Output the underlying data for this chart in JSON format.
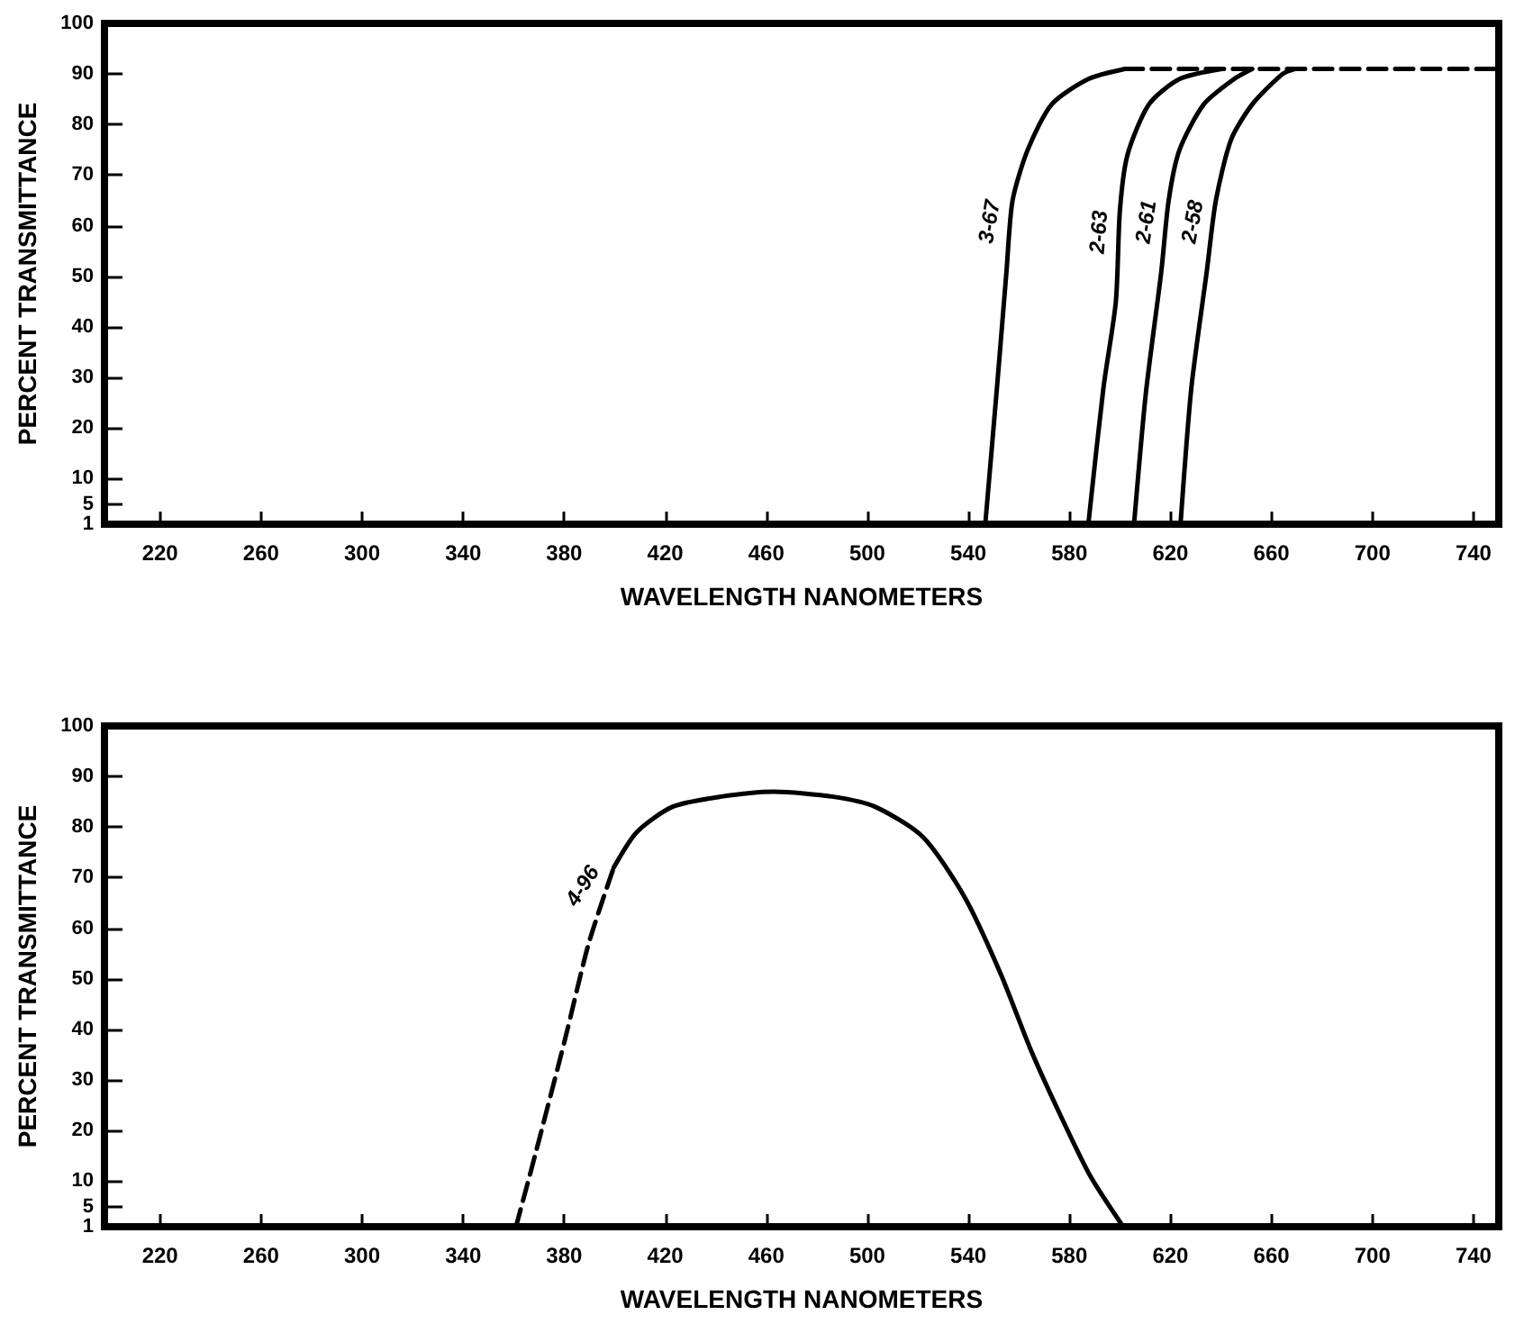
{
  "chart_data": [
    {
      "type": "line",
      "xlabel": "WAVELENGTH NANOMETERS",
      "ylabel": "PERCENT TRANSMITTANCE",
      "xlim": [
        198,
        750
      ],
      "ylim": [
        1,
        100
      ],
      "xticks": [
        220,
        260,
        300,
        340,
        380,
        420,
        460,
        500,
        540,
        580,
        620,
        660,
        700,
        740
      ],
      "yticks": [
        1,
        5,
        10,
        20,
        30,
        40,
        50,
        60,
        70,
        80,
        90,
        100
      ],
      "grid": false,
      "marker": "none",
      "series": [
        {
          "name": "3-67",
          "color": "#000000",
          "line_style": "solid",
          "x": [
            546.7,
            551.5,
            555.1,
            557.5,
            563.5,
            573,
            587.5,
            602
          ],
          "values": [
            1,
            29,
            51,
            65,
            75,
            84,
            89,
            91
          ]
        },
        {
          "name": "2-63",
          "color": "#000000",
          "line_style": "solid",
          "x": [
            587.5,
            593.5,
            598.4,
            600,
            603,
            611.5,
            623.6,
            640.4
          ],
          "values": [
            1,
            28,
            45,
            63,
            74,
            84,
            89,
            91
          ]
        },
        {
          "name": "2-61",
          "color": "#000000",
          "line_style": "solid",
          "x": [
            605.6,
            610.3,
            616.4,
            619.3,
            623.6,
            633.2,
            645.2,
            652.4
          ],
          "values": [
            1,
            27,
            51,
            65,
            75,
            84,
            89,
            91
          ]
        },
        {
          "name": "2-58",
          "color": "#000000",
          "line_style": "solid",
          "x": [
            624,
            628.3,
            634.4,
            638,
            644,
            652.4,
            664.4,
            669.2
          ],
          "values": [
            1,
            28,
            51,
            65,
            77,
            84,
            90,
            91
          ]
        },
        {
          "color": "#000000",
          "line_style": "dashed",
          "x": [
            602,
            750
          ],
          "values": [
            91,
            91
          ]
        }
      ]
    },
    {
      "type": "line",
      "xlabel": "WAVELENGTH NANOMETERS",
      "ylabel": "PERCENT TRANSMITTANCE",
      "xlim": [
        198,
        750
      ],
      "ylim": [
        1,
        100
      ],
      "xticks": [
        220,
        260,
        300,
        340,
        380,
        420,
        460,
        500,
        540,
        580,
        620,
        660,
        700,
        740
      ],
      "yticks": [
        1,
        5,
        10,
        20,
        30,
        40,
        50,
        60,
        70,
        80,
        90,
        100
      ],
      "grid": false,
      "marker": "none",
      "series": [
        {
          "color": "#000000",
          "line_style": "dashed",
          "x": [
            360.9,
            368.4,
            380.3,
            389.7,
            399.6
          ],
          "values": [
            1,
            15,
            38,
            57,
            72
          ]
        },
        {
          "name": "4-96",
          "color": "#000000",
          "line_style": "solid",
          "x": [
            399.6,
            408.7,
            422.8,
            441.7,
            463,
            486.7,
            503.2,
            522.1,
            538.7,
            552.8,
            564.7,
            576.5,
            588.3,
            601.3
          ],
          "values": [
            72,
            79,
            84,
            86,
            87,
            86,
            84,
            78,
            66,
            51,
            36,
            23,
            11,
            1
          ]
        }
      ]
    }
  ]
}
